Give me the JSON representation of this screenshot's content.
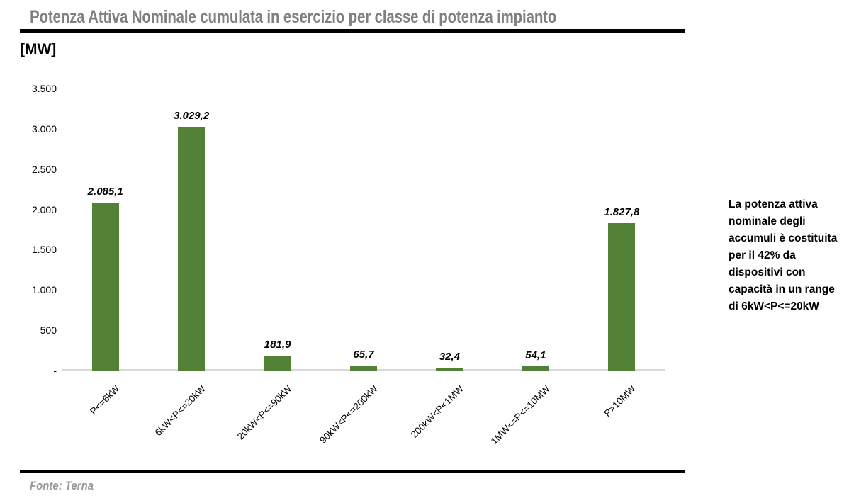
{
  "title": "Potenza Attiva Nominale cumulata in esercizio per classe di potenza impianto",
  "unit_label": "[MW]",
  "source": "Fonte: Terna",
  "annotation": {
    "text": "La potenza attiva nominale degli accumuli è costituita per il 42% da dispositivi con capacità in un range di 6kW<P<=20kW",
    "lines": [
      "La potenza attiva",
      "nominale degli",
      "accumuli è costituita",
      "per il 42% da",
      "dispositivi con",
      "capacità in un range",
      "di 6kW<P<=20kW"
    ]
  },
  "colors": {
    "bar": "#538135",
    "title": "#7f7f7f",
    "axis_line": "#d9d9d9",
    "source_text": "#999999",
    "rule": "#000000"
  },
  "chart_data": {
    "type": "bar",
    "title": "Potenza Attiva Nominale cumulata in esercizio per classe di potenza impianto",
    "xlabel": "",
    "ylabel": "[MW]",
    "categories": [
      "P<=6kW",
      "6kW<P<=20kW",
      "20kW<P<=90kW",
      "90kW<P<=200kW",
      "200kW<P<1MW",
      "1MW<=P<=10MW",
      "P>10MW"
    ],
    "values": [
      2085.1,
      3029.2,
      181.9,
      65.7,
      32.4,
      54.1,
      1827.8
    ],
    "value_labels": [
      "2.085,1",
      "3.029,2",
      "181,9",
      "65,7",
      "32,4",
      "54,1",
      "1.827,8"
    ],
    "ylim": [
      0,
      3500
    ],
    "ytick_values": [
      3500,
      3000,
      2500,
      2000,
      1500,
      1000,
      500,
      0
    ],
    "ytick_labels": [
      "3.500",
      "3.000",
      "2.500",
      "2.000",
      "1.500",
      "1.000",
      "500",
      "-"
    ],
    "grid": false,
    "legend": false,
    "bar_color": "#538135",
    "annotation": "La potenza attiva nominale degli accumuli è costituita per il 42% da dispositivi con capacità in un range di 6kW<P<=20kW",
    "source": "Fonte: Terna"
  }
}
